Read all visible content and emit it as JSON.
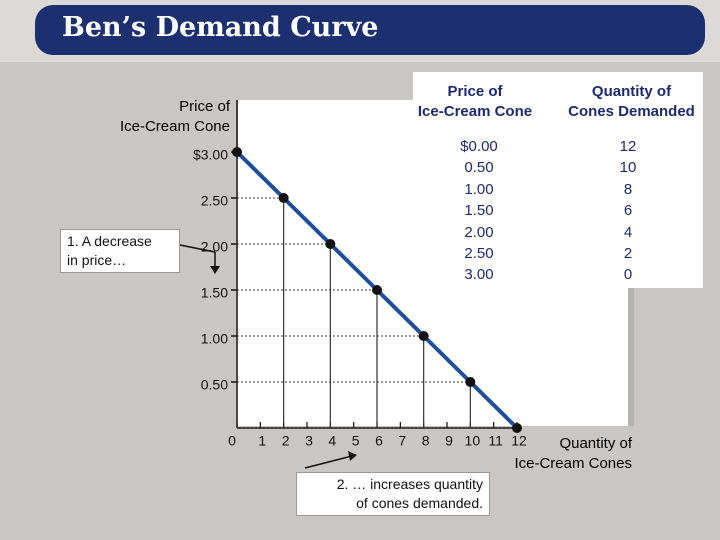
{
  "chart_data": {
    "type": "line",
    "title": "Ben’s Demand Curve",
    "x": [
      0,
      2,
      4,
      6,
      8,
      10,
      12
    ],
    "values": [
      3.0,
      2.5,
      2.0,
      1.5,
      1.0,
      0.5,
      0.0
    ],
    "color": "#1f4e9c",
    "x_label": "Quantity of\nIce-Cream Cones",
    "y_label": "Price of\nIce-Cream Cone",
    "xlim": [
      0,
      12
    ],
    "ylim": [
      0,
      3.5
    ],
    "xticks": [
      0,
      1,
      2,
      3,
      4,
      5,
      6,
      7,
      8,
      9,
      10,
      11,
      12
    ],
    "yticks": [
      {
        "value": 0.5,
        "label": "0.50"
      },
      {
        "value": 1.0,
        "label": "1.00"
      },
      {
        "value": 1.5,
        "label": "1.50"
      },
      {
        "value": 2.0,
        "label": "2.00"
      },
      {
        "value": 2.5,
        "label": "2.50"
      },
      {
        "value": 3.0,
        "label": "$3.00"
      }
    ],
    "annotations": [
      "1. A decrease\nin price…",
      "2. … increases quantity\nof cones demanded."
    ]
  },
  "table": {
    "header": [
      "Price of\nIce-Cream Cone",
      "Quantity of\nCones Demanded"
    ],
    "rows": [
      [
        "$0.00",
        "12"
      ],
      [
        "0.50",
        "10"
      ],
      [
        "1.00",
        "8"
      ],
      [
        "1.50",
        "6"
      ],
      [
        "2.00",
        "4"
      ],
      [
        "2.50",
        "2"
      ],
      [
        "3.00",
        "0"
      ]
    ]
  }
}
